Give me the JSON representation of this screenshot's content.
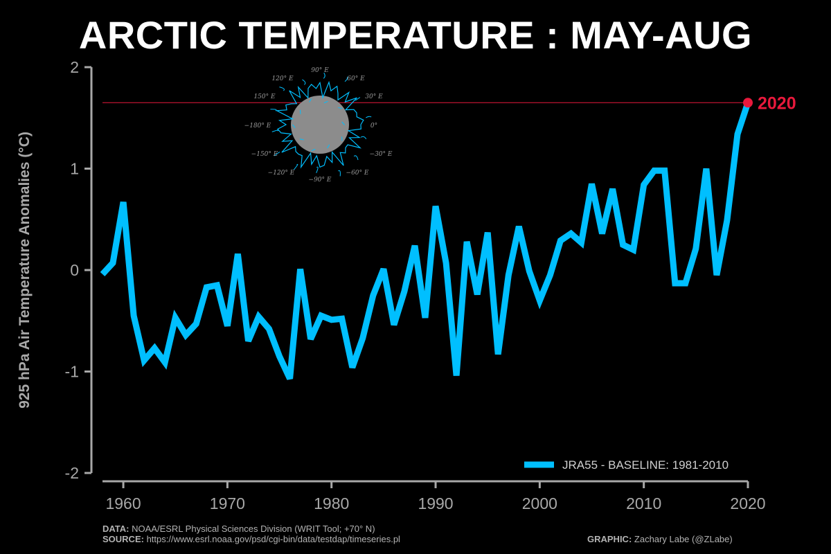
{
  "chart_data": {
    "type": "line",
    "title": "ARCTIC TEMPERATURE : MAY-AUG",
    "ylabel": "925 hPa Air Temperature Anomalies (°C)",
    "xlabel": "",
    "ylim": [
      -2,
      2
    ],
    "xlim": [
      1958,
      2020
    ],
    "yticks": [
      2,
      1,
      0,
      -1,
      -2
    ],
    "ytick_labels": [
      "2",
      "1",
      "0",
      "-1",
      "-2"
    ],
    "xticks": [
      1960,
      1970,
      1980,
      1990,
      2000,
      2010,
      2020
    ],
    "xtick_labels": [
      "1960",
      "1970",
      "1980",
      "1990",
      "2000",
      "2010",
      "2020"
    ],
    "series": [
      {
        "name": "JRA55 - BASELINE: 1981-2010",
        "color": "#00bfff",
        "x": [
          1958,
          1959,
          1960,
          1961,
          1962,
          1963,
          1964,
          1965,
          1966,
          1967,
          1968,
          1969,
          1970,
          1971,
          1972,
          1973,
          1974,
          1975,
          1976,
          1977,
          1978,
          1979,
          1980,
          1981,
          1982,
          1983,
          1984,
          1985,
          1986,
          1987,
          1988,
          1989,
          1990,
          1991,
          1992,
          1993,
          1994,
          1995,
          1996,
          1997,
          1998,
          1999,
          2000,
          2001,
          2002,
          2003,
          2004,
          2005,
          2006,
          2007,
          2008,
          2009,
          2010,
          2011,
          2012,
          2013,
          2014,
          2015,
          2016,
          2017,
          2018,
          2019,
          2020
        ],
        "values": [
          -0.04,
          0.07,
          0.67,
          -0.45,
          -0.89,
          -0.77,
          -0.91,
          -0.47,
          -0.64,
          -0.53,
          -0.17,
          -0.15,
          -0.55,
          0.16,
          -0.7,
          -0.46,
          -0.58,
          -0.85,
          -1.07,
          0.01,
          -0.68,
          -0.45,
          -0.49,
          -0.48,
          -0.96,
          -0.67,
          -0.25,
          0.01,
          -0.54,
          -0.21,
          0.24,
          -0.47,
          0.63,
          0.07,
          -1.04,
          0.28,
          -0.24,
          0.37,
          -0.83,
          -0.05,
          0.43,
          -0.01,
          -0.3,
          -0.05,
          0.29,
          0.36,
          0.27,
          0.85,
          0.36,
          0.8,
          0.25,
          0.2,
          0.84,
          0.98,
          0.98,
          -0.13,
          -0.13,
          0.21,
          1.0,
          -0.05,
          0.49,
          1.34,
          1.65
        ]
      }
    ],
    "highlight": {
      "label": "2020",
      "x": 2020,
      "value": 1.65,
      "color": "#e8193c"
    },
    "legend": "bottom-right",
    "grid": false,
    "inset_map_labels": [
      "90° E",
      "120° E",
      "60° E",
      "150° E",
      "30° E",
      "−180° E",
      "0°",
      "−150° E",
      "−30° E",
      "−120° E",
      "−60° E",
      "−90° E"
    ]
  },
  "footer": {
    "data_label": "DATA:",
    "data_text": "NOAA/ESRL Physical Sciences Division (WRIT Tool; +70° N)",
    "source_label": "SOURCE:",
    "source_text": "https://www.esrl.noaa.gov/psd/cgi-bin/data/testdap/timeseries.pl",
    "graphic_label": "GRAPHIC:",
    "graphic_text": "Zachary Labe (@ZLabe)"
  }
}
